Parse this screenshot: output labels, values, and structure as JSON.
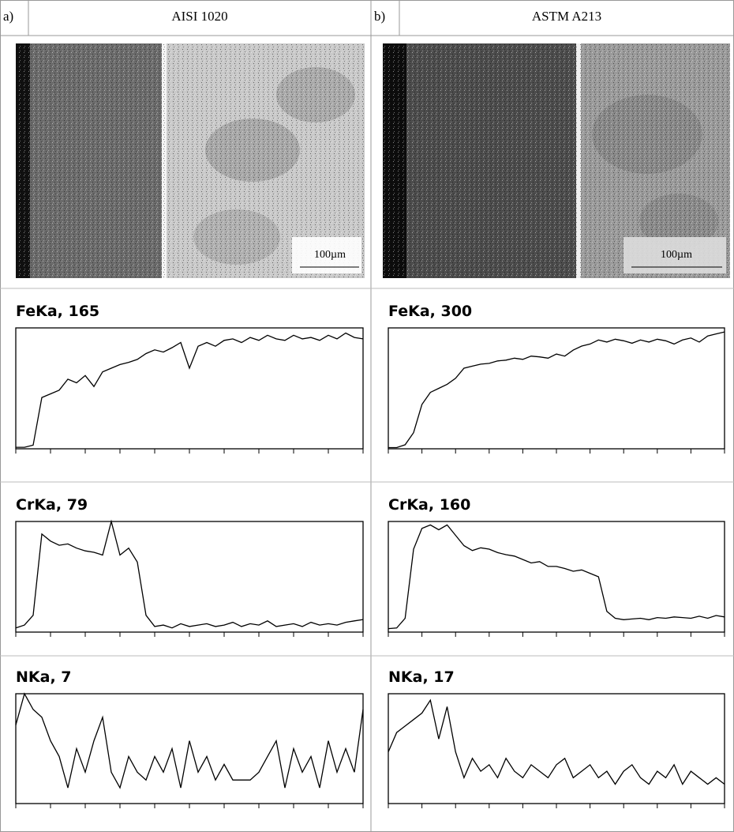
{
  "panels": [
    {
      "label": "a)",
      "title": "AISI 1020",
      "scale_bar": "100µm"
    },
    {
      "label": "b)",
      "title": "ASTM A213",
      "scale_bar": "100µm"
    }
  ],
  "chart_data": [
    {
      "type": "line",
      "title": "FeKa, 165",
      "color": "#000000",
      "xlim": [
        0,
        10
      ],
      "ylim": [
        0,
        165
      ],
      "xticks": [
        0,
        1,
        2,
        3,
        4,
        5,
        6,
        7,
        8,
        9,
        10
      ],
      "x": [
        0,
        0.25,
        0.5,
        0.75,
        1,
        1.25,
        1.5,
        1.75,
        2,
        2.25,
        2.5,
        2.75,
        3,
        3.25,
        3.5,
        3.75,
        4,
        4.25,
        4.5,
        4.75,
        5,
        5.25,
        5.5,
        5.75,
        6,
        6.25,
        6.5,
        6.75,
        7,
        7.25,
        7.5,
        7.75,
        8,
        8.25,
        8.5,
        8.75,
        9,
        9.25,
        9.5,
        9.75,
        10
      ],
      "values": [
        2,
        2,
        5,
        70,
        75,
        80,
        95,
        90,
        100,
        85,
        105,
        110,
        115,
        118,
        122,
        130,
        135,
        132,
        138,
        145,
        110,
        140,
        145,
        140,
        148,
        150,
        145,
        152,
        148,
        155,
        150,
        148,
        155,
        150,
        152,
        148,
        155,
        150,
        158,
        152,
        150
      ]
    },
    {
      "type": "line",
      "title": "FeKa, 300",
      "color": "#000000",
      "xlim": [
        0,
        10
      ],
      "ylim": [
        0,
        300
      ],
      "xticks": [
        0,
        1,
        2,
        3,
        4,
        5,
        6,
        7,
        8,
        9,
        10
      ],
      "x": [
        0,
        0.25,
        0.5,
        0.75,
        1,
        1.25,
        1.5,
        1.75,
        2,
        2.25,
        2.5,
        2.75,
        3,
        3.25,
        3.5,
        3.75,
        4,
        4.25,
        4.5,
        4.75,
        5,
        5.25,
        5.5,
        5.75,
        6,
        6.25,
        6.5,
        6.75,
        7,
        7.25,
        7.5,
        7.75,
        8,
        8.25,
        8.5,
        8.75,
        9,
        9.25,
        9.5,
        9.75,
        10
      ],
      "values": [
        3,
        3,
        10,
        40,
        110,
        140,
        150,
        160,
        175,
        200,
        205,
        210,
        212,
        218,
        220,
        225,
        222,
        230,
        228,
        225,
        235,
        230,
        245,
        255,
        260,
        270,
        265,
        272,
        268,
        262,
        270,
        265,
        272,
        268,
        260,
        270,
        275,
        265,
        280,
        285,
        290
      ]
    },
    {
      "type": "line",
      "title": "CrKa, 79",
      "color": "#000000",
      "xlim": [
        0,
        10
      ],
      "ylim": [
        0,
        79
      ],
      "xticks": [
        0,
        1,
        2,
        3,
        4,
        5,
        6,
        7,
        8,
        9,
        10
      ],
      "x": [
        0,
        0.25,
        0.5,
        0.75,
        1,
        1.25,
        1.5,
        1.75,
        2,
        2.25,
        2.5,
        2.75,
        3,
        3.25,
        3.5,
        3.75,
        4,
        4.25,
        4.5,
        4.75,
        5,
        5.25,
        5.5,
        5.75,
        6,
        6.25,
        6.5,
        6.75,
        7,
        7.25,
        7.5,
        7.75,
        8,
        8.25,
        8.5,
        8.75,
        9,
        9.25,
        9.5,
        9.75,
        10
      ],
      "values": [
        3,
        5,
        12,
        70,
        65,
        62,
        63,
        60,
        58,
        57,
        55,
        79,
        55,
        60,
        50,
        12,
        4,
        5,
        3,
        6,
        4,
        5,
        6,
        4,
        5,
        7,
        4,
        6,
        5,
        8,
        4,
        5,
        6,
        4,
        7,
        5,
        6,
        5,
        7,
        8,
        9
      ]
    },
    {
      "type": "line",
      "title": "CrKa, 160",
      "color": "#000000",
      "xlim": [
        0,
        10
      ],
      "ylim": [
        0,
        160
      ],
      "xticks": [
        0,
        1,
        2,
        3,
        4,
        5,
        6,
        7,
        8,
        9,
        10
      ],
      "x": [
        0,
        0.25,
        0.5,
        0.75,
        1,
        1.25,
        1.5,
        1.75,
        2,
        2.25,
        2.5,
        2.75,
        3,
        3.25,
        3.5,
        3.75,
        4,
        4.25,
        4.5,
        4.75,
        5,
        5.25,
        5.5,
        5.75,
        6,
        6.25,
        6.5,
        6.75,
        7,
        7.25,
        7.5,
        7.75,
        8,
        8.25,
        8.5,
        8.75,
        9,
        9.25,
        9.5,
        9.75,
        10
      ],
      "values": [
        5,
        6,
        20,
        120,
        150,
        155,
        148,
        155,
        140,
        125,
        118,
        122,
        120,
        115,
        112,
        110,
        105,
        100,
        102,
        95,
        95,
        92,
        88,
        90,
        85,
        80,
        30,
        20,
        18,
        19,
        20,
        18,
        21,
        20,
        22,
        21,
        20,
        23,
        20,
        24,
        22
      ]
    },
    {
      "type": "line",
      "title": "NKa, 7",
      "color": "#000000",
      "xlim": [
        0,
        10
      ],
      "ylim": [
        0,
        7
      ],
      "xticks": [
        0,
        1,
        2,
        3,
        4,
        5,
        6,
        7,
        8,
        9,
        10
      ],
      "x": [
        0,
        0.25,
        0.5,
        0.75,
        1,
        1.25,
        1.5,
        1.75,
        2,
        2.25,
        2.5,
        2.75,
        3,
        3.25,
        3.5,
        3.75,
        4,
        4.25,
        4.5,
        4.75,
        5,
        5.25,
        5.5,
        5.75,
        6,
        6.25,
        6.5,
        6.75,
        7,
        7.25,
        7.5,
        7.75,
        8,
        8.25,
        8.5,
        8.75,
        9,
        9.25,
        9.5,
        9.75,
        10
      ],
      "values": [
        5,
        7,
        6,
        5.5,
        4,
        3,
        1,
        3.5,
        2,
        4,
        5.5,
        2,
        1,
        3,
        2,
        1.5,
        3,
        2,
        3.5,
        1,
        4,
        2,
        3,
        1.5,
        2.5,
        1.5,
        1.5,
        1.5,
        2,
        3,
        4,
        1,
        3.5,
        2,
        3,
        1,
        4,
        2,
        3.5,
        2,
        6
      ]
    },
    {
      "type": "line",
      "title": "NKa, 17",
      "color": "#000000",
      "xlim": [
        0,
        10
      ],
      "ylim": [
        0,
        17
      ],
      "xticks": [
        0,
        1,
        2,
        3,
        4,
        5,
        6,
        7,
        8,
        9,
        10
      ],
      "x": [
        0,
        0.25,
        0.5,
        0.75,
        1,
        1.25,
        1.5,
        1.75,
        2,
        2.25,
        2.5,
        2.75,
        3,
        3.25,
        3.5,
        3.75,
        4,
        4.25,
        4.5,
        4.75,
        5,
        5.25,
        5.5,
        5.75,
        6,
        6.25,
        6.5,
        6.75,
        7,
        7.25,
        7.5,
        7.75,
        8,
        8.25,
        8.5,
        8.75,
        9,
        9.25,
        9.5,
        9.75,
        10
      ],
      "values": [
        8,
        11,
        12,
        13,
        14,
        16,
        10,
        15,
        8,
        4,
        7,
        5,
        6,
        4,
        7,
        5,
        4,
        6,
        5,
        4,
        6,
        7,
        4,
        5,
        6,
        4,
        5,
        3,
        5,
        6,
        4,
        3,
        5,
        4,
        6,
        3,
        5,
        4,
        3,
        4,
        3
      ]
    }
  ]
}
